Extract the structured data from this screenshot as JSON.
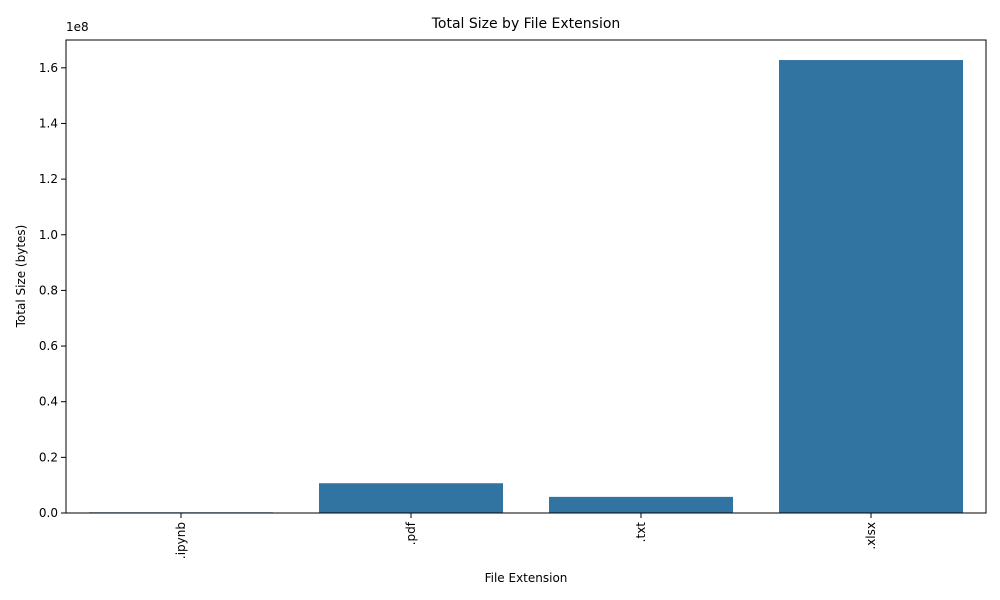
{
  "chart_data": {
    "type": "bar",
    "title": "Total Size by File Extension",
    "xlabel": "File Extension",
    "ylabel": "Total Size (bytes)",
    "y_multiplier_label": "1e8",
    "categories": [
      ".ipynb",
      ".pdf",
      ".txt",
      ".xlsx"
    ],
    "values": [
      250000,
      10700000,
      5800000,
      162800000
    ],
    "ylim": [
      0,
      170000000
    ],
    "yticks": [
      0,
      20000000,
      40000000,
      60000000,
      80000000,
      100000000,
      120000000,
      140000000,
      160000000
    ],
    "ytick_labels": [
      "0.0",
      "0.2",
      "0.4",
      "0.6",
      "0.8",
      "1.0",
      "1.2",
      "1.4",
      "1.6"
    ],
    "grid": false,
    "legend": "none",
    "x_tick_rotation": "vertical",
    "bar_color": "#3274a1"
  }
}
